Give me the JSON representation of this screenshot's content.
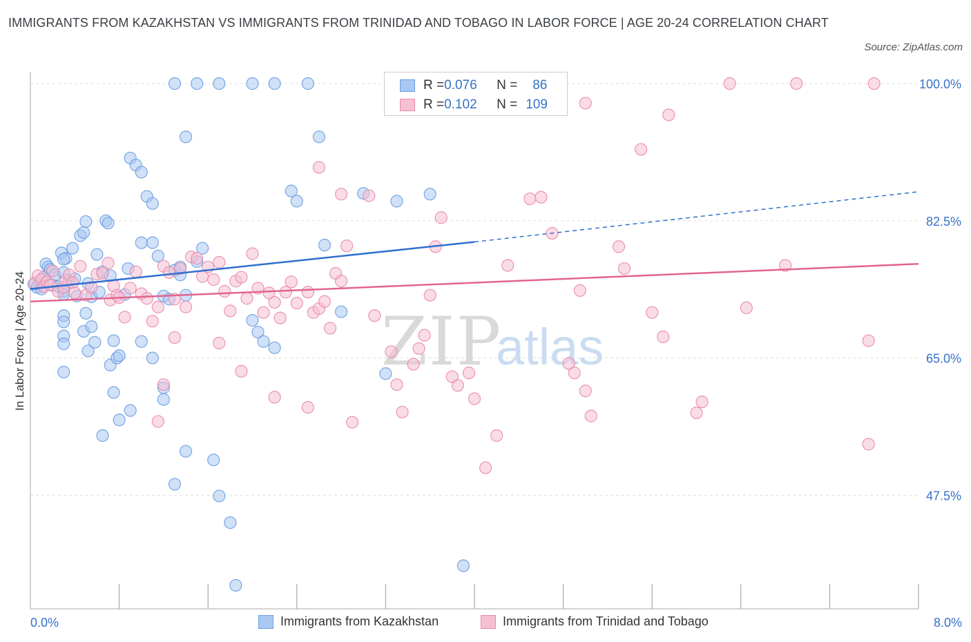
{
  "header": {
    "title": "IMMIGRANTS FROM KAZAKHSTAN VS IMMIGRANTS FROM TRINIDAD AND TOBAGO IN LABOR FORCE | AGE 20-24 CORRELATION CHART",
    "source": "Source: ZipAtlas.com"
  },
  "legend": {
    "rows": [
      {
        "r_label": "R = ",
        "r_value": "0.076",
        "n_label": "N = ",
        "n_value": "86"
      },
      {
        "r_label": "R = ",
        "r_value": "0.102",
        "n_label": "N = ",
        "n_value": "109"
      }
    ]
  },
  "watermark": {
    "zip": "ZIP",
    "atlas": "atlas"
  },
  "colors": {
    "blue_fill": "#aac8f2",
    "blue_stroke": "#6d9de0",
    "blue_line": "#2f6fcf",
    "pink_fill": "#f6c0d3",
    "pink_stroke": "#e88aab",
    "pink_line": "#e2648f",
    "tick_text": "#3571c9",
    "grid": "#dddddd"
  },
  "chart_data": {
    "type": "scatter",
    "title": "IMMIGRANTS FROM KAZAKHSTAN VS IMMIGRANTS FROM TRINIDAD AND TOBAGO IN LABOR FORCE | AGE 20-24 CORRELATION CHART",
    "ylabel": "In Labor Force | Age 20-24",
    "xlabel": "",
    "xlim": [
      0,
      8
    ],
    "ylim": [
      33,
      101.5
    ],
    "x_ticks": [
      0,
      0.8,
      1.6,
      2.4,
      3.2,
      4.0,
      4.8,
      5.6,
      6.4,
      7.2,
      8.0
    ],
    "x_tick_labels": {
      "0": "0.0%",
      "8": "8.0%"
    },
    "y_ticks": [
      47.5,
      65.0,
      82.5,
      100.0
    ],
    "y_tick_labels": [
      "47.5%",
      "65.0%",
      "82.5%",
      "100.0%"
    ],
    "grid": true,
    "legend_position": "top-center",
    "series": [
      {
        "name": "Immigrants from Kazakhstan",
        "color": "blue",
        "trend": {
          "x": [
            0,
            4.0
          ],
          "y": [
            73.8,
            79.8
          ],
          "dashed_to": [
            8.0,
            86.2
          ]
        },
        "points": [
          [
            0.03,
            74.4
          ],
          [
            0.06,
            74.0
          ],
          [
            0.08,
            74.6
          ],
          [
            0.1,
            73.8
          ],
          [
            0.12,
            75.3
          ],
          [
            0.14,
            77.0
          ],
          [
            0.16,
            76.6
          ],
          [
            0.18,
            76.3
          ],
          [
            0.2,
            74.3
          ],
          [
            0.22,
            75.6
          ],
          [
            0.25,
            74.1
          ],
          [
            0.28,
            78.4
          ],
          [
            0.3,
            73.5
          ],
          [
            0.32,
            77.7
          ],
          [
            0.35,
            74.8
          ],
          [
            0.3,
            77.6
          ],
          [
            0.3,
            75.9
          ],
          [
            0.3,
            73.1
          ],
          [
            0.3,
            70.4
          ],
          [
            0.3,
            67.8
          ],
          [
            0.3,
            69.6
          ],
          [
            0.3,
            66.8
          ],
          [
            0.3,
            63.2
          ],
          [
            0.38,
            79.0
          ],
          [
            0.4,
            75.1
          ],
          [
            0.42,
            72.9
          ],
          [
            0.45,
            80.6
          ],
          [
            0.48,
            81.0
          ],
          [
            0.5,
            82.4
          ],
          [
            0.52,
            74.5
          ],
          [
            0.55,
            72.8
          ],
          [
            0.5,
            70.7
          ],
          [
            0.48,
            68.4
          ],
          [
            0.52,
            65.9
          ],
          [
            0.55,
            69.0
          ],
          [
            0.58,
            67.0
          ],
          [
            0.6,
            78.2
          ],
          [
            0.62,
            73.4
          ],
          [
            0.65,
            76.0
          ],
          [
            0.68,
            82.5
          ],
          [
            0.7,
            82.2
          ],
          [
            0.72,
            75.5
          ],
          [
            0.75,
            67.2
          ],
          [
            0.72,
            64.1
          ],
          [
            0.75,
            60.6
          ],
          [
            0.78,
            65.0
          ],
          [
            0.8,
            57.1
          ],
          [
            0.85,
            73.1
          ],
          [
            0.88,
            76.4
          ],
          [
            0.9,
            90.5
          ],
          [
            0.95,
            89.6
          ],
          [
            1.0,
            88.7
          ],
          [
            1.05,
            85.6
          ],
          [
            1.1,
            84.7
          ],
          [
            1.0,
            79.7
          ],
          [
            1.1,
            79.7
          ],
          [
            1.15,
            78.0
          ],
          [
            1.2,
            72.9
          ],
          [
            1.25,
            72.5
          ],
          [
            1.3,
            76.2
          ],
          [
            1.35,
            75.6
          ],
          [
            1.35,
            76.6
          ],
          [
            1.4,
            73.0
          ],
          [
            1.5,
            77.3
          ],
          [
            1.55,
            79.0
          ],
          [
            1.65,
            52.0
          ],
          [
            1.7,
            47.4
          ],
          [
            1.8,
            44.0
          ],
          [
            1.85,
            36.0
          ],
          [
            2.0,
            69.8
          ],
          [
            2.05,
            68.3
          ],
          [
            2.1,
            67.1
          ],
          [
            2.2,
            66.3
          ],
          [
            2.35,
            86.3
          ],
          [
            2.4,
            85.0
          ],
          [
            2.6,
            93.2
          ],
          [
            2.65,
            79.4
          ],
          [
            2.8,
            70.9
          ],
          [
            3.0,
            86.0
          ],
          [
            3.3,
            85.0
          ],
          [
            3.6,
            85.9
          ],
          [
            3.6,
            100.0
          ],
          [
            3.8,
            100.0
          ],
          [
            1.4,
            93.2
          ],
          [
            1.3,
            100.0
          ],
          [
            1.5,
            100.0
          ],
          [
            1.7,
            100.0
          ],
          [
            2.0,
            100.0
          ],
          [
            2.2,
            100.0
          ],
          [
            2.5,
            100.0
          ],
          [
            0.65,
            55.1
          ],
          [
            0.9,
            58.3
          ],
          [
            1.2,
            59.7
          ],
          [
            0.8,
            65.3
          ],
          [
            1.0,
            67.1
          ],
          [
            1.1,
            65.0
          ],
          [
            1.2,
            61.2
          ],
          [
            1.4,
            53.1
          ],
          [
            1.3,
            48.9
          ],
          [
            3.2,
            63.0
          ],
          [
            3.9,
            38.5
          ]
        ]
      },
      {
        "name": "Immigrants from Trinidad and Tobago",
        "color": "pink",
        "trend": {
          "x": [
            0,
            8.0
          ],
          "y": [
            72.2,
            77.0
          ]
        },
        "points": [
          [
            0.04,
            74.6
          ],
          [
            0.07,
            75.5
          ],
          [
            0.1,
            75.0
          ],
          [
            0.12,
            74.1
          ],
          [
            0.15,
            74.7
          ],
          [
            0.18,
            74.3
          ],
          [
            0.2,
            76.1
          ],
          [
            0.25,
            73.5
          ],
          [
            0.3,
            74.0
          ],
          [
            0.32,
            74.9
          ],
          [
            0.35,
            75.6
          ],
          [
            0.38,
            74.6
          ],
          [
            0.4,
            73.3
          ],
          [
            0.45,
            76.7
          ],
          [
            0.5,
            73.0
          ],
          [
            0.55,
            74.0
          ],
          [
            0.6,
            75.7
          ],
          [
            0.65,
            75.8
          ],
          [
            0.7,
            77.1
          ],
          [
            0.72,
            72.4
          ],
          [
            0.75,
            74.2
          ],
          [
            0.78,
            73.0
          ],
          [
            0.8,
            72.7
          ],
          [
            0.85,
            70.2
          ],
          [
            0.9,
            73.9
          ],
          [
            0.95,
            76.0
          ],
          [
            1.0,
            73.2
          ],
          [
            1.05,
            72.6
          ],
          [
            1.1,
            69.7
          ],
          [
            1.15,
            71.5
          ],
          [
            1.2,
            76.7
          ],
          [
            1.25,
            75.9
          ],
          [
            1.3,
            72.5
          ],
          [
            1.35,
            76.4
          ],
          [
            1.4,
            71.5
          ],
          [
            1.45,
            77.9
          ],
          [
            1.5,
            77.7
          ],
          [
            1.55,
            75.4
          ],
          [
            1.6,
            76.6
          ],
          [
            1.65,
            75.0
          ],
          [
            1.7,
            77.2
          ],
          [
            1.75,
            73.5
          ],
          [
            1.8,
            71.0
          ],
          [
            1.85,
            74.8
          ],
          [
            1.9,
            75.3
          ],
          [
            1.95,
            72.6
          ],
          [
            2.0,
            78.3
          ],
          [
            2.05,
            73.9
          ],
          [
            2.1,
            70.8
          ],
          [
            2.15,
            73.3
          ],
          [
            2.2,
            72.1
          ],
          [
            2.25,
            70.1
          ],
          [
            2.3,
            73.4
          ],
          [
            2.35,
            74.7
          ],
          [
            2.4,
            72.0
          ],
          [
            2.5,
            73.4
          ],
          [
            2.55,
            70.8
          ],
          [
            2.6,
            71.3
          ],
          [
            2.65,
            72.2
          ],
          [
            2.7,
            68.8
          ],
          [
            2.75,
            75.8
          ],
          [
            2.8,
            74.8
          ],
          [
            2.85,
            79.3
          ],
          [
            2.6,
            89.3
          ],
          [
            2.8,
            85.9
          ],
          [
            3.05,
            85.7
          ],
          [
            3.1,
            70.4
          ],
          [
            3.25,
            65.8
          ],
          [
            3.3,
            61.6
          ],
          [
            3.35,
            58.1
          ],
          [
            3.45,
            64.2
          ],
          [
            3.5,
            66.2
          ],
          [
            3.55,
            67.9
          ],
          [
            3.6,
            73.0
          ],
          [
            3.65,
            79.2
          ],
          [
            3.7,
            82.9
          ],
          [
            3.8,
            62.6
          ],
          [
            3.85,
            61.5
          ],
          [
            3.95,
            63.1
          ],
          [
            4.0,
            59.8
          ],
          [
            4.1,
            51.0
          ],
          [
            4.2,
            55.1
          ],
          [
            4.3,
            76.8
          ],
          [
            4.5,
            85.3
          ],
          [
            4.6,
            85.5
          ],
          [
            4.7,
            80.9
          ],
          [
            4.85,
            64.3
          ],
          [
            4.9,
            63.1
          ],
          [
            4.95,
            73.6
          ],
          [
            5.0,
            60.8
          ],
          [
            5.05,
            57.6
          ],
          [
            5.3,
            79.2
          ],
          [
            5.35,
            76.4
          ],
          [
            5.5,
            91.6
          ],
          [
            5.6,
            70.8
          ],
          [
            5.7,
            67.7
          ],
          [
            6.0,
            58.0
          ],
          [
            6.05,
            59.4
          ],
          [
            6.3,
            100.0
          ],
          [
            6.45,
            71.4
          ],
          [
            6.8,
            76.8
          ],
          [
            6.9,
            100.0
          ],
          [
            7.6,
            100.0
          ],
          [
            7.55,
            67.2
          ],
          [
            7.55,
            54.0
          ],
          [
            1.15,
            56.9
          ],
          [
            1.2,
            61.6
          ],
          [
            1.7,
            66.9
          ],
          [
            1.9,
            63.3
          ],
          [
            2.2,
            60.0
          ],
          [
            2.5,
            58.7
          ],
          [
            2.9,
            56.8
          ],
          [
            3.6,
            97.4
          ],
          [
            4.35,
            100.0
          ],
          [
            5.0,
            97.5
          ],
          [
            5.75,
            96.0
          ],
          [
            1.3,
            67.6
          ]
        ]
      }
    ]
  },
  "bottom_legend": {
    "items": [
      {
        "label": "Immigrants from Kazakhstan"
      },
      {
        "label": "Immigrants from Trinidad and Tobago"
      }
    ]
  }
}
